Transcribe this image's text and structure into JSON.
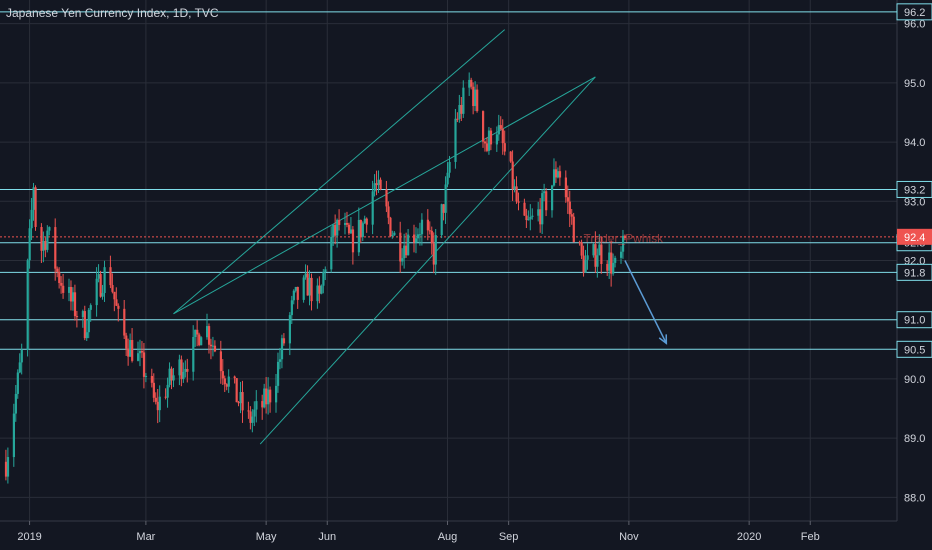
{
  "title": "Japanese Yen Currency Index, 1D, TVC",
  "theme": {
    "background": "#131722",
    "grid": "#2a2e39",
    "text": "#d1d4dc",
    "up": "#26a69a",
    "down": "#ef5350",
    "level_line": "#80deea",
    "channel": "#26a69a",
    "arrow": "#5b9bd5",
    "price_line": "#ef5350"
  },
  "chart_data": {
    "type": "candlestick",
    "title": "Japanese Yen Currency Index, 1D, TVC",
    "ylim": [
      87.6,
      96.4
    ],
    "y_ticks": [
      88.0,
      89.0,
      90.0,
      91.0,
      92.0,
      93.0,
      94.0,
      95.0,
      96.0
    ],
    "x_ticks": [
      "2019",
      "Mar",
      "May",
      "Jun",
      "Aug",
      "Sep",
      "Nov",
      "2020",
      "Feb"
    ],
    "horizontal_levels": [
      96.2,
      93.2,
      92.3,
      91.8,
      91.0,
      90.5
    ],
    "last_price": 92.4,
    "watermark": "Trader_Pwhisk",
    "trend_channel": {
      "upper": {
        "from": [
          "2019-03-15",
          91.1
        ],
        "to": [
          "2019-08-30",
          95.9
        ]
      },
      "lower": {
        "from": [
          "2019-04-28",
          88.9
        ],
        "to": [
          "2019-10-15",
          95.1
        ]
      },
      "middle": {
        "from": [
          "2019-03-15",
          91.1
        ],
        "to": [
          "2019-10-15",
          95.1
        ]
      }
    },
    "projection_arrow": {
      "from": [
        "2019-10-30",
        92.0
      ],
      "to": [
        "2019-11-20",
        90.6
      ]
    },
    "series": [
      {
        "name": "",
        "points": [
          [
            "2018-12-20",
            88.6
          ],
          [
            "2018-12-28",
            90.4
          ],
          [
            "2019-01-03",
            93.3
          ],
          [
            "2019-01-05",
            92.0
          ],
          [
            "2019-01-10",
            92.5
          ],
          [
            "2019-01-15",
            91.8
          ],
          [
            "2019-01-22",
            91.3
          ],
          [
            "2019-01-29",
            90.9
          ],
          [
            "2019-02-04",
            91.5
          ],
          [
            "2019-02-10",
            91.9
          ],
          [
            "2019-02-16",
            90.8
          ],
          [
            "2019-02-24",
            90.4
          ],
          [
            "2019-03-01",
            90.1
          ],
          [
            "2019-03-06",
            89.5
          ],
          [
            "2019-03-12",
            89.9
          ],
          [
            "2019-03-18",
            90.2
          ],
          [
            "2019-03-24",
            90.4
          ],
          [
            "2019-03-30",
            91.0
          ],
          [
            "2019-04-04",
            90.6
          ],
          [
            "2019-04-10",
            90.1
          ],
          [
            "2019-04-16",
            89.7
          ],
          [
            "2019-04-22",
            89.3
          ],
          [
            "2019-04-28",
            89.5
          ],
          [
            "2019-05-04",
            89.8
          ],
          [
            "2019-05-09",
            90.5
          ],
          [
            "2019-05-15",
            91.3
          ],
          [
            "2019-05-22",
            91.6
          ],
          [
            "2019-05-28",
            91.3
          ],
          [
            "2019-06-01",
            92.2
          ],
          [
            "2019-06-07",
            92.6
          ],
          [
            "2019-06-13",
            92.3
          ],
          [
            "2019-06-19",
            92.6
          ],
          [
            "2019-06-25",
            93.3
          ],
          [
            "2019-07-01",
            92.8
          ],
          [
            "2019-07-07",
            92.2
          ],
          [
            "2019-07-13",
            92.4
          ],
          [
            "2019-07-19",
            92.6
          ],
          [
            "2019-07-25",
            92.1
          ],
          [
            "2019-08-01",
            93.3
          ],
          [
            "2019-08-04",
            94.3
          ],
          [
            "2019-08-08",
            94.6
          ],
          [
            "2019-08-12",
            95.0
          ],
          [
            "2019-08-16",
            94.6
          ],
          [
            "2019-08-21",
            93.9
          ],
          [
            "2019-08-25",
            94.4
          ],
          [
            "2019-08-30",
            93.8
          ],
          [
            "2019-09-03",
            93.3
          ],
          [
            "2019-09-08",
            92.5
          ],
          [
            "2019-09-14",
            92.7
          ],
          [
            "2019-09-20",
            93.0
          ],
          [
            "2019-09-26",
            93.6
          ],
          [
            "2019-10-02",
            92.8
          ],
          [
            "2019-10-08",
            92.0
          ],
          [
            "2019-10-12",
            91.9
          ],
          [
            "2019-10-16",
            92.2
          ],
          [
            "2019-10-22",
            92.0
          ],
          [
            "2019-10-26",
            91.8
          ],
          [
            "2019-10-30",
            92.3
          ]
        ]
      }
    ]
  }
}
